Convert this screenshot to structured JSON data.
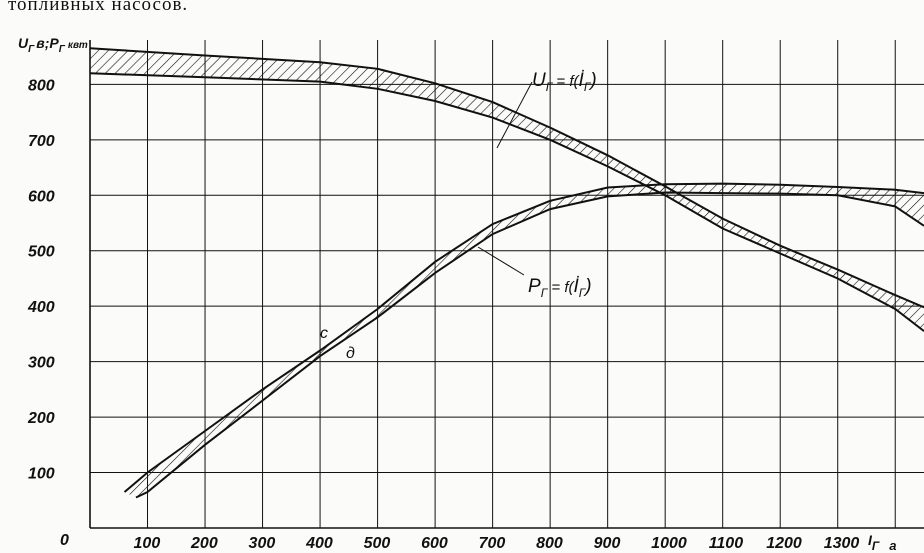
{
  "page": {
    "caption": "топливных насосов."
  },
  "chart_data": {
    "type": "line",
    "xlabel": "I_Г а",
    "xlabel_main": "I",
    "xlabel_sub": "Г",
    "xlabel_unit": "а",
    "ylabel": "U_Г в; P_Г квт",
    "ylabel_parts": {
      "u": "U",
      "usub": "Г",
      "v": "в;",
      "p": "P",
      "psub": "Г",
      "unit": "квт"
    },
    "xlim": [
      0,
      1450
    ],
    "ylim": [
      0,
      880
    ],
    "xticks": [
      "100",
      "200",
      "300",
      "400",
      "500",
      "600",
      "700",
      "800",
      "900",
      "1000",
      "1100",
      "1200",
      "1300"
    ],
    "yticks": [
      "100",
      "200",
      "300",
      "400",
      "500",
      "600",
      "700",
      "800"
    ],
    "origin_label": "0",
    "grid": true,
    "series": [
      {
        "name": "U_Г = f(I_Г)",
        "label_text": "= f(",
        "label_parts": {
          "a": "U",
          "asub": "Г",
          "eq": " = f(",
          "b": "İ",
          "bsub": "Г",
          "close": ")"
        },
        "upper": [
          [
            0,
            865
          ],
          [
            200,
            852
          ],
          [
            400,
            840
          ],
          [
            500,
            828
          ],
          [
            600,
            802
          ],
          [
            700,
            768
          ],
          [
            800,
            722
          ],
          [
            900,
            672
          ],
          [
            1000,
            616
          ],
          [
            1100,
            558
          ],
          [
            1200,
            509
          ],
          [
            1300,
            466
          ],
          [
            1400,
            420
          ],
          [
            1450,
            398
          ]
        ],
        "lower": [
          [
            0,
            820
          ],
          [
            200,
            813
          ],
          [
            400,
            805
          ],
          [
            500,
            792
          ],
          [
            600,
            770
          ],
          [
            700,
            740
          ],
          [
            800,
            700
          ],
          [
            900,
            652
          ],
          [
            1000,
            600
          ],
          [
            1100,
            540
          ],
          [
            1200,
            495
          ],
          [
            1300,
            450
          ],
          [
            1400,
            395
          ],
          [
            1450,
            355
          ]
        ]
      },
      {
        "name": "P_Г = f(I_Г)",
        "label_parts": {
          "a": "P",
          "asub": "Г",
          "eq": " = f(",
          "b": "İ",
          "bsub": "Г",
          "close": ")"
        },
        "upper": [
          [
            60,
            65
          ],
          [
            100,
            100
          ],
          [
            200,
            175
          ],
          [
            300,
            250
          ],
          [
            400,
            320
          ],
          [
            500,
            395
          ],
          [
            600,
            480
          ],
          [
            700,
            548
          ],
          [
            800,
            590
          ],
          [
            900,
            614
          ],
          [
            1000,
            620
          ],
          [
            1100,
            621
          ],
          [
            1200,
            619
          ],
          [
            1300,
            615
          ],
          [
            1400,
            610
          ],
          [
            1450,
            604
          ]
        ],
        "lower": [
          [
            80,
            55
          ],
          [
            100,
            65
          ],
          [
            200,
            150
          ],
          [
            300,
            230
          ],
          [
            400,
            310
          ],
          [
            500,
            380
          ],
          [
            600,
            460
          ],
          [
            700,
            530
          ],
          [
            800,
            575
          ],
          [
            900,
            598
          ],
          [
            1000,
            605
          ],
          [
            1100,
            604
          ],
          [
            1200,
            603
          ],
          [
            1300,
            600
          ],
          [
            1400,
            580
          ],
          [
            1450,
            545
          ]
        ]
      }
    ],
    "annotations": [
      {
        "text": "c",
        "x": 430,
        "y": 360
      },
      {
        "text": "д",
        "x": 505,
        "y": 317
      }
    ]
  }
}
